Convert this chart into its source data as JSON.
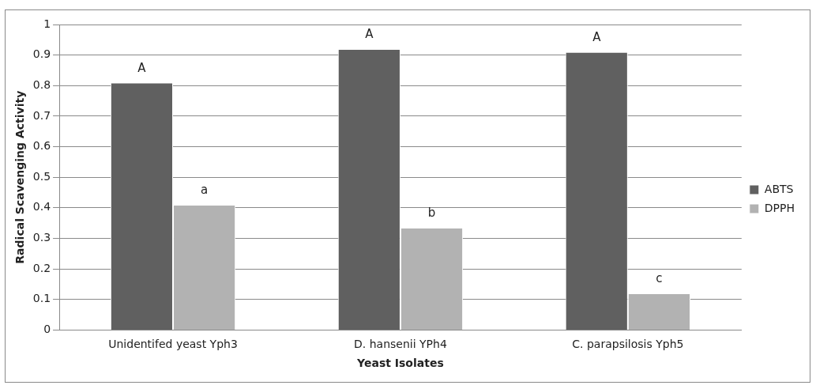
{
  "chart_data": {
    "type": "bar",
    "xlabel": "Yeast Isolates",
    "ylabel": "Radical Scavenging Activity",
    "categories": [
      "Unidentifed yeast Yph3",
      "D. hansenii YPh4",
      "C. parapsilosis Yph5"
    ],
    "series": [
      {
        "name": "ABTS",
        "color": "#606060",
        "values": [
          0.81,
          0.92,
          0.91
        ]
      },
      {
        "name": "DPPH",
        "color": "#b2b2b2",
        "values": [
          0.41,
          0.335,
          0.12
        ]
      }
    ],
    "ylim": [
      0,
      1
    ],
    "yticks": [
      0,
      0.1,
      0.2,
      0.3,
      0.4,
      0.5,
      0.6,
      0.7,
      0.8,
      0.9,
      1
    ],
    "grid": "y",
    "legend": "right",
    "annotations": [
      {
        "text": "A",
        "x": "Unidentifed yeast Yph3",
        "y": 0.81
      },
      {
        "text": "a",
        "x": "Unidentifed yeast Yph3",
        "y": 0.41
      },
      {
        "text": "A",
        "x": "D. hansenii YPh4",
        "y": 0.92
      },
      {
        "text": "b",
        "x": "D. hansenii YPh4",
        "y": 0.335
      },
      {
        "text": "A",
        "x": "C. parapsilosis Yph5",
        "y": 0.91
      },
      {
        "text": "c",
        "x": "C. parapsilosis Yph5",
        "y": 0.12
      }
    ]
  }
}
